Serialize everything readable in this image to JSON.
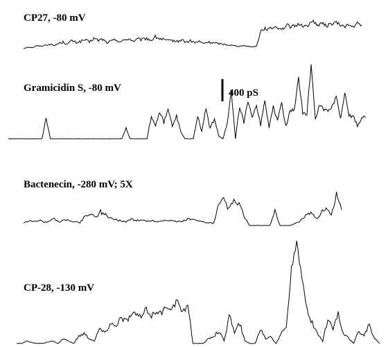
{
  "chart_data": {
    "type": "line",
    "description_units": "conductance (pS) vs. time",
    "scale_bar": {
      "label": "400 pS",
      "value_pS": 400
    },
    "series": [
      {
        "name": "CP27, -80 mV",
        "label": "CP27, -80 mV",
        "values": [
          0,
          5,
          3,
          10,
          8,
          12,
          15,
          10,
          18,
          22,
          15,
          28,
          20,
          25,
          30,
          22,
          35,
          28,
          32,
          20,
          26,
          30,
          24,
          28,
          35,
          25,
          32,
          30,
          36,
          28,
          40,
          34,
          30,
          26,
          28,
          24,
          30,
          22,
          26,
          20,
          24,
          18,
          22,
          20,
          18,
          16,
          14,
          12,
          10,
          8,
          10,
          8,
          6,
          8,
          60,
          70,
          65,
          75,
          72,
          68,
          80,
          74,
          78,
          85,
          76,
          82,
          95,
          80,
          86,
          78,
          84,
          90,
          82,
          76,
          80,
          74,
          86,
          78
        ]
      },
      {
        "name": "Gramicidin S, -80 mV",
        "label": "Gramicidin S, -80 mV",
        "values": [
          0,
          0,
          0,
          0,
          0,
          0,
          0,
          0,
          0,
          60,
          0,
          0,
          0,
          0,
          0,
          0,
          0,
          0,
          0,
          0,
          0,
          0,
          0,
          0,
          0,
          0,
          0,
          0,
          30,
          0,
          0,
          0,
          0,
          0,
          70,
          40,
          80,
          50,
          90,
          35,
          70,
          20,
          0,
          0,
          0,
          70,
          20,
          90,
          30,
          60,
          10,
          0,
          40,
          140,
          0,
          95,
          50,
          110,
          60,
          100,
          40,
          120,
          30,
          95,
          55,
          110,
          35,
          80,
          90,
          180,
          80,
          75,
          220,
          60,
          100,
          90,
          80,
          95,
          130,
          60,
          140,
          70,
          65,
          40,
          60,
          70
        ]
      },
      {
        "name": "Bactenecin, -280 mV; 5X",
        "label": "Bactenecin, -280 mV; 5X",
        "values": [
          5,
          10,
          8,
          12,
          6,
          10,
          14,
          8,
          12,
          10,
          8,
          6,
          20,
          25,
          18,
          30,
          22,
          16,
          12,
          10,
          8,
          14,
          10,
          12,
          9,
          11,
          8,
          10,
          12,
          10,
          8,
          9,
          14,
          12,
          10,
          8,
          6,
          5,
          40,
          55,
          35,
          50,
          45,
          20,
          0,
          0,
          0,
          0,
          0,
          30,
          0,
          0,
          0,
          5,
          10,
          20,
          30,
          15,
          25,
          40,
          20,
          70,
          30
        ]
      },
      {
        "name": "CP-28, -130 mV",
        "label": "CP-28, -130 mV",
        "values": [
          0,
          0,
          5,
          2,
          0,
          0,
          3,
          5,
          0,
          10,
          5,
          0,
          15,
          20,
          10,
          5,
          30,
          20,
          40,
          35,
          50,
          45,
          55,
          60,
          50,
          70,
          55,
          65,
          60,
          75,
          70,
          85,
          60,
          80,
          0,
          0,
          0,
          10,
          15,
          25,
          5,
          60,
          20,
          40,
          5,
          0,
          0,
          30,
          10,
          15,
          0,
          20,
          35,
          150,
          200,
          130,
          70,
          40,
          20,
          5,
          50,
          30,
          60,
          20,
          10,
          0,
          25,
          15,
          40,
          10,
          0
        ]
      }
    ],
    "annotations": {
      "panel_titles": [
        "CP27, -80 mV",
        "Gramicidin S, -80 mV",
        "Bactenecin, -280 mV; 5X",
        "CP-28, -130 mV"
      ]
    }
  }
}
